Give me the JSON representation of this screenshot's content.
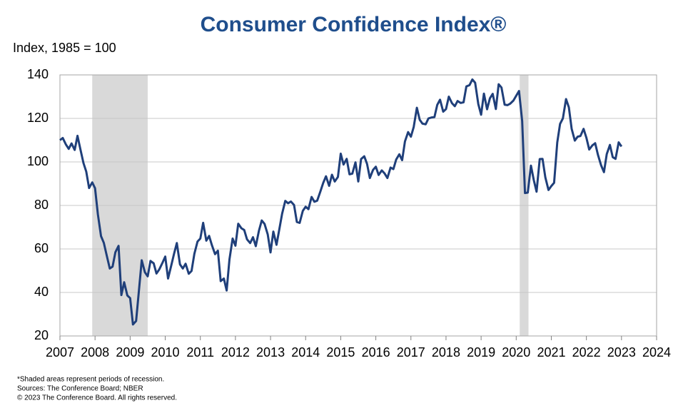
{
  "chart_data": {
    "type": "line",
    "title": "Consumer Confidence Index®",
    "y_label": "Index, 1985 = 100",
    "notes": [
      "*Shaded areas represent periods of recession.",
      "Sources: The Conference Board;  NBER",
      "© 2023 The Conference Board. All rights reserved."
    ],
    "xlim": [
      2007,
      2024
    ],
    "xticks": [
      2007,
      2008,
      2009,
      2010,
      2011,
      2012,
      2013,
      2014,
      2015,
      2016,
      2017,
      2018,
      2019,
      2020,
      2021,
      2022,
      2023,
      2024
    ],
    "ylim": [
      20,
      140
    ],
    "yticks": [
      20,
      40,
      60,
      80,
      100,
      120,
      140
    ],
    "grid": true,
    "recessions": [
      {
        "start": 2007.92,
        "end": 2009.5
      },
      {
        "start": 2020.1,
        "end": 2020.35
      }
    ],
    "recession_color": "#d9d9d9",
    "series": [
      {
        "color": "#1f3f7a",
        "x": [
          2007.0,
          2007.08,
          2007.17,
          2007.25,
          2007.33,
          2007.42,
          2007.5,
          2007.58,
          2007.67,
          2007.75,
          2007.83,
          2007.92,
          2008.0,
          2008.08,
          2008.17,
          2008.25,
          2008.33,
          2008.42,
          2008.5,
          2008.58,
          2008.67,
          2008.75,
          2008.83,
          2008.92,
          2009.0,
          2009.08,
          2009.17,
          2009.25,
          2009.33,
          2009.42,
          2009.5,
          2009.58,
          2009.67,
          2009.75,
          2009.83,
          2009.92,
          2010.0,
          2010.08,
          2010.17,
          2010.25,
          2010.33,
          2010.42,
          2010.5,
          2010.58,
          2010.67,
          2010.75,
          2010.83,
          2010.92,
          2011.0,
          2011.08,
          2011.17,
          2011.25,
          2011.33,
          2011.42,
          2011.5,
          2011.58,
          2011.67,
          2011.75,
          2011.83,
          2011.92,
          2012.0,
          2012.08,
          2012.17,
          2012.25,
          2012.33,
          2012.42,
          2012.5,
          2012.58,
          2012.67,
          2012.75,
          2012.83,
          2012.92,
          2013.0,
          2013.08,
          2013.17,
          2013.25,
          2013.33,
          2013.42,
          2013.5,
          2013.58,
          2013.67,
          2013.75,
          2013.83,
          2013.92,
          2014.0,
          2014.08,
          2014.17,
          2014.25,
          2014.33,
          2014.42,
          2014.5,
          2014.58,
          2014.67,
          2014.75,
          2014.83,
          2014.92,
          2015.0,
          2015.08,
          2015.17,
          2015.25,
          2015.33,
          2015.42,
          2015.5,
          2015.58,
          2015.67,
          2015.75,
          2015.83,
          2015.92,
          2016.0,
          2016.08,
          2016.17,
          2016.25,
          2016.33,
          2016.42,
          2016.5,
          2016.58,
          2016.67,
          2016.75,
          2016.83,
          2016.92,
          2017.0,
          2017.08,
          2017.17,
          2017.25,
          2017.33,
          2017.42,
          2017.5,
          2017.58,
          2017.67,
          2017.75,
          2017.83,
          2017.92,
          2018.0,
          2018.08,
          2018.17,
          2018.25,
          2018.33,
          2018.42,
          2018.5,
          2018.58,
          2018.67,
          2018.75,
          2018.83,
          2018.92,
          2019.0,
          2019.08,
          2019.17,
          2019.25,
          2019.33,
          2019.42,
          2019.5,
          2019.58,
          2019.67,
          2019.75,
          2019.83,
          2019.92,
          2020.0,
          2020.08,
          2020.17,
          2020.25,
          2020.33,
          2020.42,
          2020.5,
          2020.58,
          2020.67,
          2020.75,
          2020.83,
          2020.92,
          2021.0,
          2021.08,
          2021.17,
          2021.25,
          2021.33,
          2021.42,
          2021.5,
          2021.58,
          2021.67,
          2021.75,
          2021.83,
          2021.92,
          2022.0,
          2022.08,
          2022.17,
          2022.25,
          2022.33,
          2022.42,
          2022.5,
          2022.58,
          2022.67,
          2022.75,
          2022.83,
          2022.92,
          2023.0
        ],
        "values": [
          110,
          111,
          108,
          106,
          108.5,
          105.5,
          112,
          106,
          99.5,
          95.5,
          88,
          90.6,
          87.9,
          76,
          65.9,
          62.8,
          57.2,
          51,
          51.9,
          58.5,
          61.4,
          38.8,
          44.7,
          38.6,
          37.4,
          25.3,
          26.9,
          40.8,
          54.8,
          49.3,
          47.4,
          54.5,
          53.4,
          48.7,
          50.6,
          53.6,
          56.5,
          46.4,
          52.3,
          57.7,
          62.7,
          52.9,
          51,
          53.2,
          48.6,
          49.9,
          57.8,
          63.4,
          64.8,
          72,
          63.8,
          66,
          61.7,
          57.6,
          59.2,
          45.2,
          46.4,
          40.9,
          55.2,
          64.8,
          61.5,
          71.6,
          69.5,
          68.7,
          64.4,
          62.7,
          65.4,
          61.3,
          68.4,
          73.1,
          71.5,
          66.7,
          58.4,
          68,
          61.9,
          69,
          76.2,
          82.1,
          81,
          81.8,
          80.2,
          72.4,
          72,
          77.5,
          79.4,
          78.3,
          83.9,
          81.7,
          82.2,
          86.4,
          90.3,
          93.4,
          89,
          94.1,
          91,
          93.1,
          103.8,
          98.8,
          101.4,
          94.3,
          94.6,
          99.8,
          91,
          101.3,
          102.6,
          99.1,
          92.6,
          96.3,
          97.8,
          94,
          96.1,
          94.7,
          92.6,
          97.4,
          96.7,
          101.1,
          103.5,
          100.8,
          109.4,
          113.7,
          111.6,
          116.1,
          124.9,
          119.4,
          117.6,
          117.3,
          120,
          120.4,
          120.6,
          126.2,
          128.6,
          123.1,
          124.3,
          130,
          127,
          125.6,
          128,
          127.1,
          127.4,
          134.7,
          135.3,
          137.9,
          136.4,
          126.6,
          121.7,
          131.4,
          124.2,
          129.2,
          131.3,
          124.3,
          135.7,
          134.2,
          126.3,
          126.1,
          126.8,
          128.2,
          130.4,
          132.6,
          118.8,
          85.7,
          85.9,
          98.3,
          91.7,
          86.3,
          101.3,
          101.4,
          92.9,
          87.1,
          88.9,
          90.4,
          109,
          117.5,
          120,
          128.9,
          125.1,
          115.2,
          109.8,
          111.6,
          111.9,
          115.2,
          111.1,
          105.7,
          107.6,
          108.6,
          103.2,
          98.4,
          95.3,
          103.6,
          107.8,
          102.2,
          101.4,
          109,
          107.1
        ]
      }
    ]
  }
}
